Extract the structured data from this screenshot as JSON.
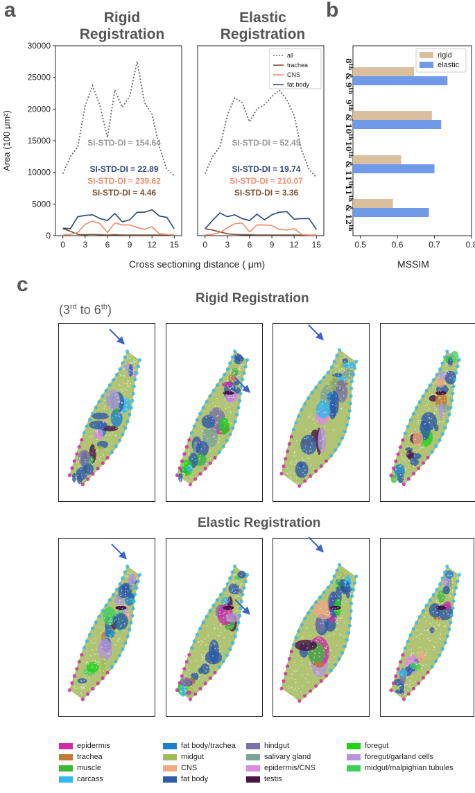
{
  "panels": {
    "a": "a",
    "b": "b",
    "c": "c"
  },
  "titles": {
    "rigid": "Rigid\nRegistration",
    "elastic": "Elastic\nRegistration"
  },
  "section_c": {
    "range_label": "(3rd to 6th)",
    "rigid_row": "Rigid  Registration",
    "elastic_row": "Elastic  Registration"
  },
  "chart_data": [
    {
      "type": "line",
      "title": "Rigid Registration",
      "xlabel": "Cross sectioning distance ( μm)",
      "ylabel": "Area (100 μm²)",
      "xlim": [
        -1,
        16
      ],
      "ylim": [
        0,
        30000
      ],
      "xticks": [
        0,
        3,
        6,
        9,
        12,
        15
      ],
      "yticks": [
        0,
        5000,
        10000,
        15000,
        20000,
        25000,
        30000
      ],
      "x": [
        0,
        1,
        2,
        3,
        4,
        5,
        6,
        7,
        8,
        9,
        10,
        11,
        12,
        13,
        14,
        15
      ],
      "series": [
        {
          "name": "all",
          "color": "#666666",
          "values": [
            9800,
            12500,
            14000,
            20500,
            23700,
            20500,
            15500,
            23000,
            20300,
            22000,
            27500,
            21000,
            19200,
            14000,
            10500,
            9500
          ]
        },
        {
          "name": "trachea",
          "color": "#7a5232",
          "values": [
            1100,
            700,
            200,
            150,
            200,
            150,
            100,
            150,
            100,
            100,
            100,
            100,
            100,
            100,
            100,
            100
          ]
        },
        {
          "name": "CNS",
          "color": "#f09070",
          "values": [
            100,
            200,
            500,
            1800,
            2300,
            1900,
            500,
            2000,
            1700,
            1700,
            1300,
            1000,
            1400,
            300,
            200,
            100
          ]
        },
        {
          "name": "fat body",
          "color": "#2d4a7a",
          "values": [
            1200,
            1100,
            3000,
            3200,
            3300,
            2700,
            2400,
            3500,
            2200,
            2500,
            3700,
            3700,
            4100,
            3100,
            2900,
            1100
          ]
        }
      ],
      "annotations": [
        {
          "text": "SI-STD-DI = 154.64",
          "color": "#999999"
        },
        {
          "text": "SI-STD-DI = 22.89",
          "color": "#2d4a7a"
        },
        {
          "text": "SI-STD-DI = 239.62",
          "color": "#f09070"
        },
        {
          "text": "SI-STD-DI = 4.46",
          "color": "#7a5232"
        }
      ]
    },
    {
      "type": "line",
      "title": "Elastic Registration",
      "xlabel": "Cross sectioning distance ( μm)",
      "ylabel": "Area (100 μm²)",
      "xlim": [
        -1,
        16
      ],
      "ylim": [
        0,
        30000
      ],
      "xticks": [
        0,
        3,
        6,
        9,
        12,
        15
      ],
      "x": [
        0,
        1,
        2,
        3,
        4,
        5,
        6,
        7,
        8,
        9,
        10,
        11,
        12,
        13,
        14,
        15
      ],
      "series": [
        {
          "name": "all",
          "color": "#666666",
          "values": [
            9800,
            12500,
            14000,
            19000,
            21800,
            21000,
            18000,
            20000,
            20700,
            22000,
            23000,
            21500,
            19000,
            13500,
            10500,
            9200
          ]
        },
        {
          "name": "trachea",
          "color": "#7a5232",
          "values": [
            1100,
            900,
            600,
            300,
            200,
            150,
            150,
            100,
            100,
            100,
            100,
            100,
            100,
            100,
            100,
            100
          ]
        },
        {
          "name": "CNS",
          "color": "#f09070",
          "values": [
            100,
            200,
            500,
            1200,
            1900,
            2000,
            600,
            1700,
            1700,
            1600,
            1000,
            900,
            1100,
            200,
            100,
            100
          ]
        },
        {
          "name": "fat body",
          "color": "#2d4a7a",
          "values": [
            1100,
            2400,
            3600,
            3000,
            3300,
            2700,
            2400,
            3400,
            2500,
            3300,
            3700,
            3800,
            2600,
            2700,
            2700,
            1000
          ]
        }
      ],
      "annotations": [
        {
          "text": "SI-STD-DI = 52.49",
          "color": "#999999"
        },
        {
          "text": "SI-STD-DI = 19.74",
          "color": "#2d4a7a"
        },
        {
          "text": "SI-STD-DI = 210.07",
          "color": "#f09070"
        },
        {
          "text": "SI-STD-DI = 3.36",
          "color": "#7a5232"
        }
      ],
      "legend": {
        "placement": "top-right",
        "entries": [
          "all",
          "trachea",
          "CNS",
          "fat body"
        ]
      }
    },
    {
      "type": "bar",
      "orientation": "horizontal",
      "xlabel": "MSSIM",
      "xlim": [
        0.48,
        0.8
      ],
      "xticks": [
        "0.5",
        "0.6",
        "0.7",
        "0.8"
      ],
      "categories": [
        "8th & 9th",
        "9th & 10th",
        "10th & 11th",
        "11th & 12th"
      ],
      "series": [
        {
          "name": "rigid",
          "color": "#d9bf9e",
          "values": [
            0.645,
            0.693,
            0.61,
            0.588
          ]
        },
        {
          "name": "elastic",
          "color": "#6f9ae8",
          "values": [
            0.735,
            0.718,
            0.7,
            0.685
          ]
        }
      ],
      "legend": {
        "placement": "top-right",
        "entries": [
          "rigid",
          "elastic"
        ]
      }
    }
  ],
  "tissue_legend": [
    {
      "name": "epidermis",
      "color": "#cc2ea6"
    },
    {
      "name": "trachea",
      "color": "#c07a34"
    },
    {
      "name": "muscle",
      "color": "#3cba37"
    },
    {
      "name": "carcass",
      "color": "#35b8ec"
    },
    {
      "name": "fat body/trachea",
      "color": "#1b82c8"
    },
    {
      "name": "midgut",
      "color": "#a2ba5a"
    },
    {
      "name": "CNS",
      "color": "#eeaa82"
    },
    {
      "name": "fat body",
      "color": "#2f5ba8"
    },
    {
      "name": "hindgut",
      "color": "#7a73a5"
    },
    {
      "name": "salivary gland",
      "color": "#7aa496"
    },
    {
      "name": "epidermis/CNS",
      "color": "#d98ce0"
    },
    {
      "name": "testis",
      "color": "#4a1445"
    },
    {
      "name": "foregut",
      "color": "#21d21b"
    },
    {
      "name": "foregut/garland cells",
      "color": "#b596dc"
    },
    {
      "name": "midgut/malpighian tubules",
      "color": "#3fd05a"
    }
  ]
}
